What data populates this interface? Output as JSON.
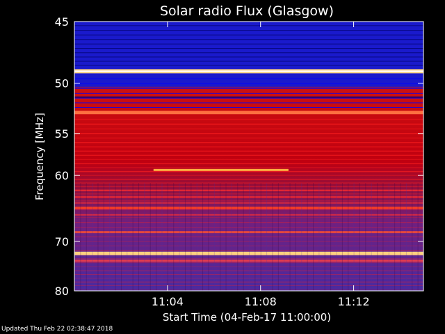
{
  "chart_data": {
    "type": "heatmap",
    "title": "Solar radio Flux (Glasgow)",
    "ylabel": "Frequency [MHz]",
    "xlabel": "Start Time (04-Feb-17 11:00:00)",
    "y_ticks": [
      45,
      50,
      55,
      60,
      70,
      80
    ],
    "x_ticks": [
      "11:04",
      "11:08",
      "11:12"
    ],
    "x_tick_minutes": [
      4,
      8,
      12
    ],
    "ylim": [
      45,
      80
    ],
    "xlim_minutes": [
      0,
      15
    ],
    "y_scale": "reciprocal",
    "colormap": "blue-red-yellow",
    "grid": false
  },
  "footer": "Updated Thu Feb 22 02:38:47 2018",
  "colors": {
    "background": "#000000",
    "low": "#0a0aa0",
    "mid": "#c00000",
    "high": "#ffe080"
  }
}
